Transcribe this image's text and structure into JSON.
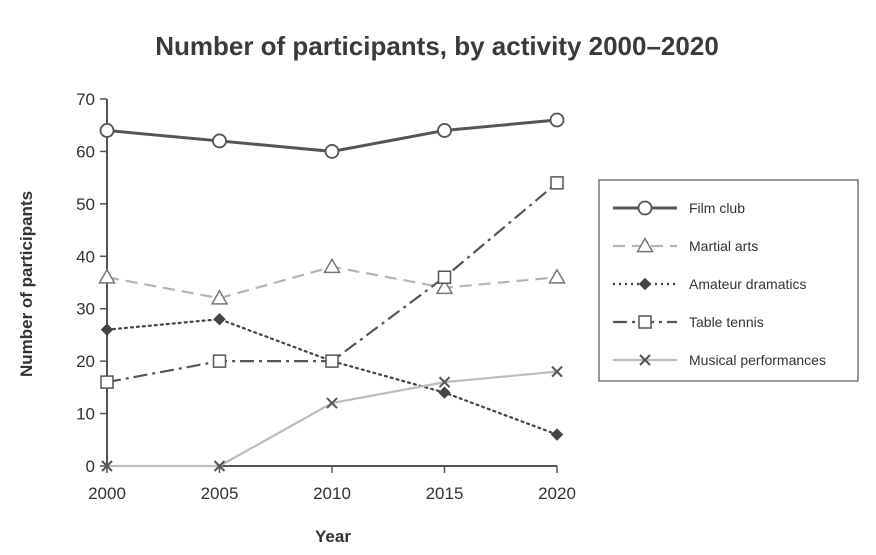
{
  "chart_data": {
    "type": "line",
    "title": "Number of participants, by activity 2000–2020",
    "xlabel": "Year",
    "ylabel": "Number of participants",
    "x": [
      2000,
      2005,
      2010,
      2015,
      2020
    ],
    "x_tick_labels": [
      "2000",
      "2005",
      "2010",
      "2015",
      "2020"
    ],
    "y_tick_labels": [
      "0",
      "10",
      "20",
      "30",
      "40",
      "50",
      "60",
      "70"
    ],
    "y_ticks": [
      0,
      10,
      20,
      30,
      40,
      50,
      60,
      70
    ],
    "xlim": [
      2000,
      2020
    ],
    "ylim": [
      0,
      70
    ],
    "grid": false,
    "legend_position": "right",
    "series": [
      {
        "name": "Film club",
        "values": [
          64,
          62,
          60,
          64,
          66
        ],
        "color": "#555555",
        "dash": "solid",
        "marker": "circle"
      },
      {
        "name": "Martial arts",
        "values": [
          36,
          32,
          38,
          34,
          36
        ],
        "color": "#b5b5b5",
        "dash": "dashed",
        "marker": "triangle"
      },
      {
        "name": "Amateur dramatics",
        "values": [
          26,
          28,
          20,
          14,
          6
        ],
        "color": "#444444",
        "dash": "dotted",
        "marker": "diamond"
      },
      {
        "name": "Table tennis",
        "values": [
          16,
          20,
          20,
          36,
          54
        ],
        "color": "#555555",
        "dash": "dashdot",
        "marker": "square"
      },
      {
        "name": "Musical performances",
        "values": [
          0,
          0,
          12,
          16,
          18
        ],
        "color": "#bdbdbd",
        "dash": "solid",
        "marker": "x"
      }
    ]
  }
}
